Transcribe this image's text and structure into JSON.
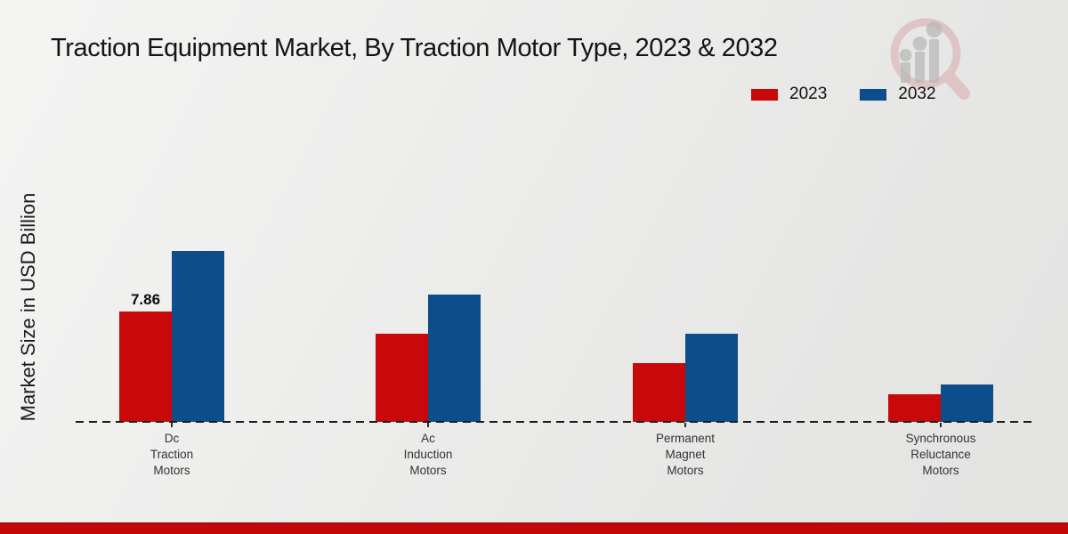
{
  "title": "Traction Equipment Market, By Traction Motor Type, 2023 & 2032",
  "y_axis_label": "Market Size in USD Billion",
  "legend": {
    "items": [
      {
        "label": "2023",
        "color": "#c90909"
      },
      {
        "label": "2032",
        "color": "#0e4d8c"
      }
    ]
  },
  "colors": {
    "series_2023": "#c90909",
    "series_2032": "#0e4d8c",
    "bottom_strip": "#c20808",
    "axis_line": "#1a1a1a"
  },
  "watermark": {
    "icon": "magnifier-bar-chart-logo-icon"
  },
  "chart_data": {
    "type": "bar",
    "title": "Traction Equipment Market, By Traction Motor Type, 2023 & 2032",
    "xlabel": "",
    "ylabel": "Market Size in USD Billion",
    "unit": "USD Billion",
    "categories": [
      "Dc\nTraction\nMotors",
      "Ac\nInduction\nMotors",
      "Permanent\nMagnet\nMotors",
      "Synchronous\nReluctance\nMotors"
    ],
    "series": [
      {
        "name": "2023",
        "color": "#c90909",
        "values": [
          7.86,
          6.27,
          4.18,
          1.96
        ]
      },
      {
        "name": "2032",
        "color": "#0e4d8c",
        "values": [
          12.17,
          9.06,
          6.27,
          2.66
        ]
      }
    ],
    "value_labels": [
      {
        "series_index": 0,
        "category_index": 0,
        "text": "7.86"
      }
    ],
    "ylim": [
      0,
      13
    ],
    "grid": false,
    "y_axis_ticks_visible": false,
    "baseline_style": "dashed",
    "legend_position": "top-right"
  }
}
